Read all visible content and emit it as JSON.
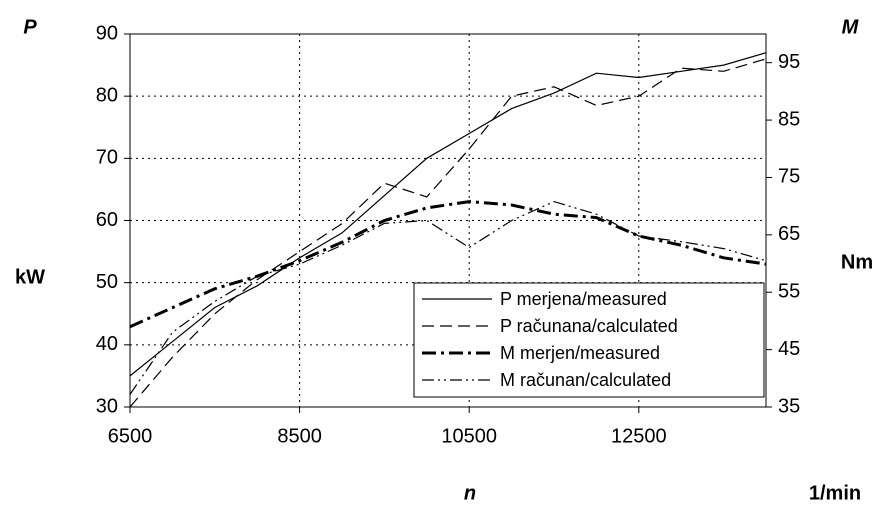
{
  "chart_data": {
    "type": "line",
    "x_label": "n",
    "x_unit": "1/min",
    "y_symbol": "P",
    "y_unit": "kW",
    "y2_symbol": "M",
    "y2_unit": "Nm",
    "x": [
      6500,
      7000,
      7500,
      8000,
      8500,
      9000,
      9500,
      10000,
      10500,
      11000,
      11500,
      12000,
      12500,
      13000,
      13500,
      14000
    ],
    "xlim": [
      6500,
      14000
    ],
    "xticks": [
      6500,
      8500,
      10500,
      12500
    ],
    "ylim": [
      30,
      90
    ],
    "yticks": [
      30,
      40,
      50,
      60,
      70,
      80,
      90
    ],
    "y2lim": [
      35,
      100
    ],
    "y2ticks": [
      35,
      45,
      55,
      65,
      75,
      85,
      95
    ],
    "grid": true,
    "legend": "lower right",
    "series": [
      {
        "name": "P merjena/measured",
        "color": "#000000",
        "linestyle": "solid",
        "linewidth": 1.2,
        "values": [
          35,
          40.5,
          46,
          49.5,
          54,
          58,
          64,
          70,
          74,
          78,
          80.5,
          83.7,
          83,
          84,
          85,
          87
        ]
      },
      {
        "name": "P računana/calculated",
        "color": "#000000",
        "linestyle": "dashed",
        "linewidth": 1.2,
        "values": [
          30,
          38,
          45,
          50.5,
          55,
          59.5,
          66,
          63.8,
          71.5,
          80,
          81.5,
          78.5,
          80,
          84.5,
          84,
          86
        ]
      },
      {
        "name": "M merjen/measured",
        "color": "#000000",
        "linestyle": "dash-dot",
        "linewidth": 3,
        "axis": "y2",
        "values": [
          49,
          52.3,
          55.6,
          57.8,
          60.5,
          63.7,
          67.5,
          69.7,
          70.8,
          70.2,
          68.6,
          68,
          64.8,
          63.2,
          61,
          59.9
        ]
      },
      {
        "name": "M računan/calculated",
        "color": "#000000",
        "linestyle": "dash-dot-dot",
        "linewidth": 1.2,
        "axis": "y2",
        "values": [
          37.2,
          48,
          53.4,
          57.8,
          59.9,
          63.2,
          67,
          67.5,
          62.8,
          67.5,
          70.8,
          68.6,
          64.8,
          63.8,
          62.6,
          60.5
        ]
      }
    ]
  }
}
